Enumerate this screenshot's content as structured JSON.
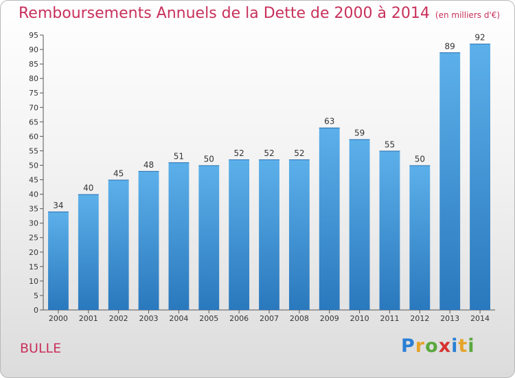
{
  "chart_data": {
    "type": "bar",
    "title": "Remboursements Annuels de la Dette de 2000 à 2014",
    "unit_note": "(en milliers d'€)",
    "categories": [
      "2000",
      "2001",
      "2002",
      "2003",
      "2004",
      "2005",
      "2006",
      "2007",
      "2008",
      "2009",
      "2010",
      "2011",
      "2012",
      "2013",
      "2014"
    ],
    "values": [
      34,
      40,
      45,
      48,
      51,
      50,
      52,
      52,
      52,
      63,
      59,
      55,
      50,
      89,
      92
    ],
    "ylim": [
      0,
      95
    ],
    "ytick_step": 5,
    "grid": false,
    "bar_color": "#3d8fd6",
    "title_color": "#c8305a"
  },
  "footer": {
    "commune": "BULLE",
    "logo_letters": [
      "P",
      "r",
      "o",
      "x",
      "i",
      "t",
      "i"
    ],
    "logo_colors": [
      "#2a7fd4",
      "#e5a32a",
      "#5aa83c",
      "#d6322f",
      "#2a7fd4",
      "#e5a32a",
      "#5aa83c"
    ]
  }
}
